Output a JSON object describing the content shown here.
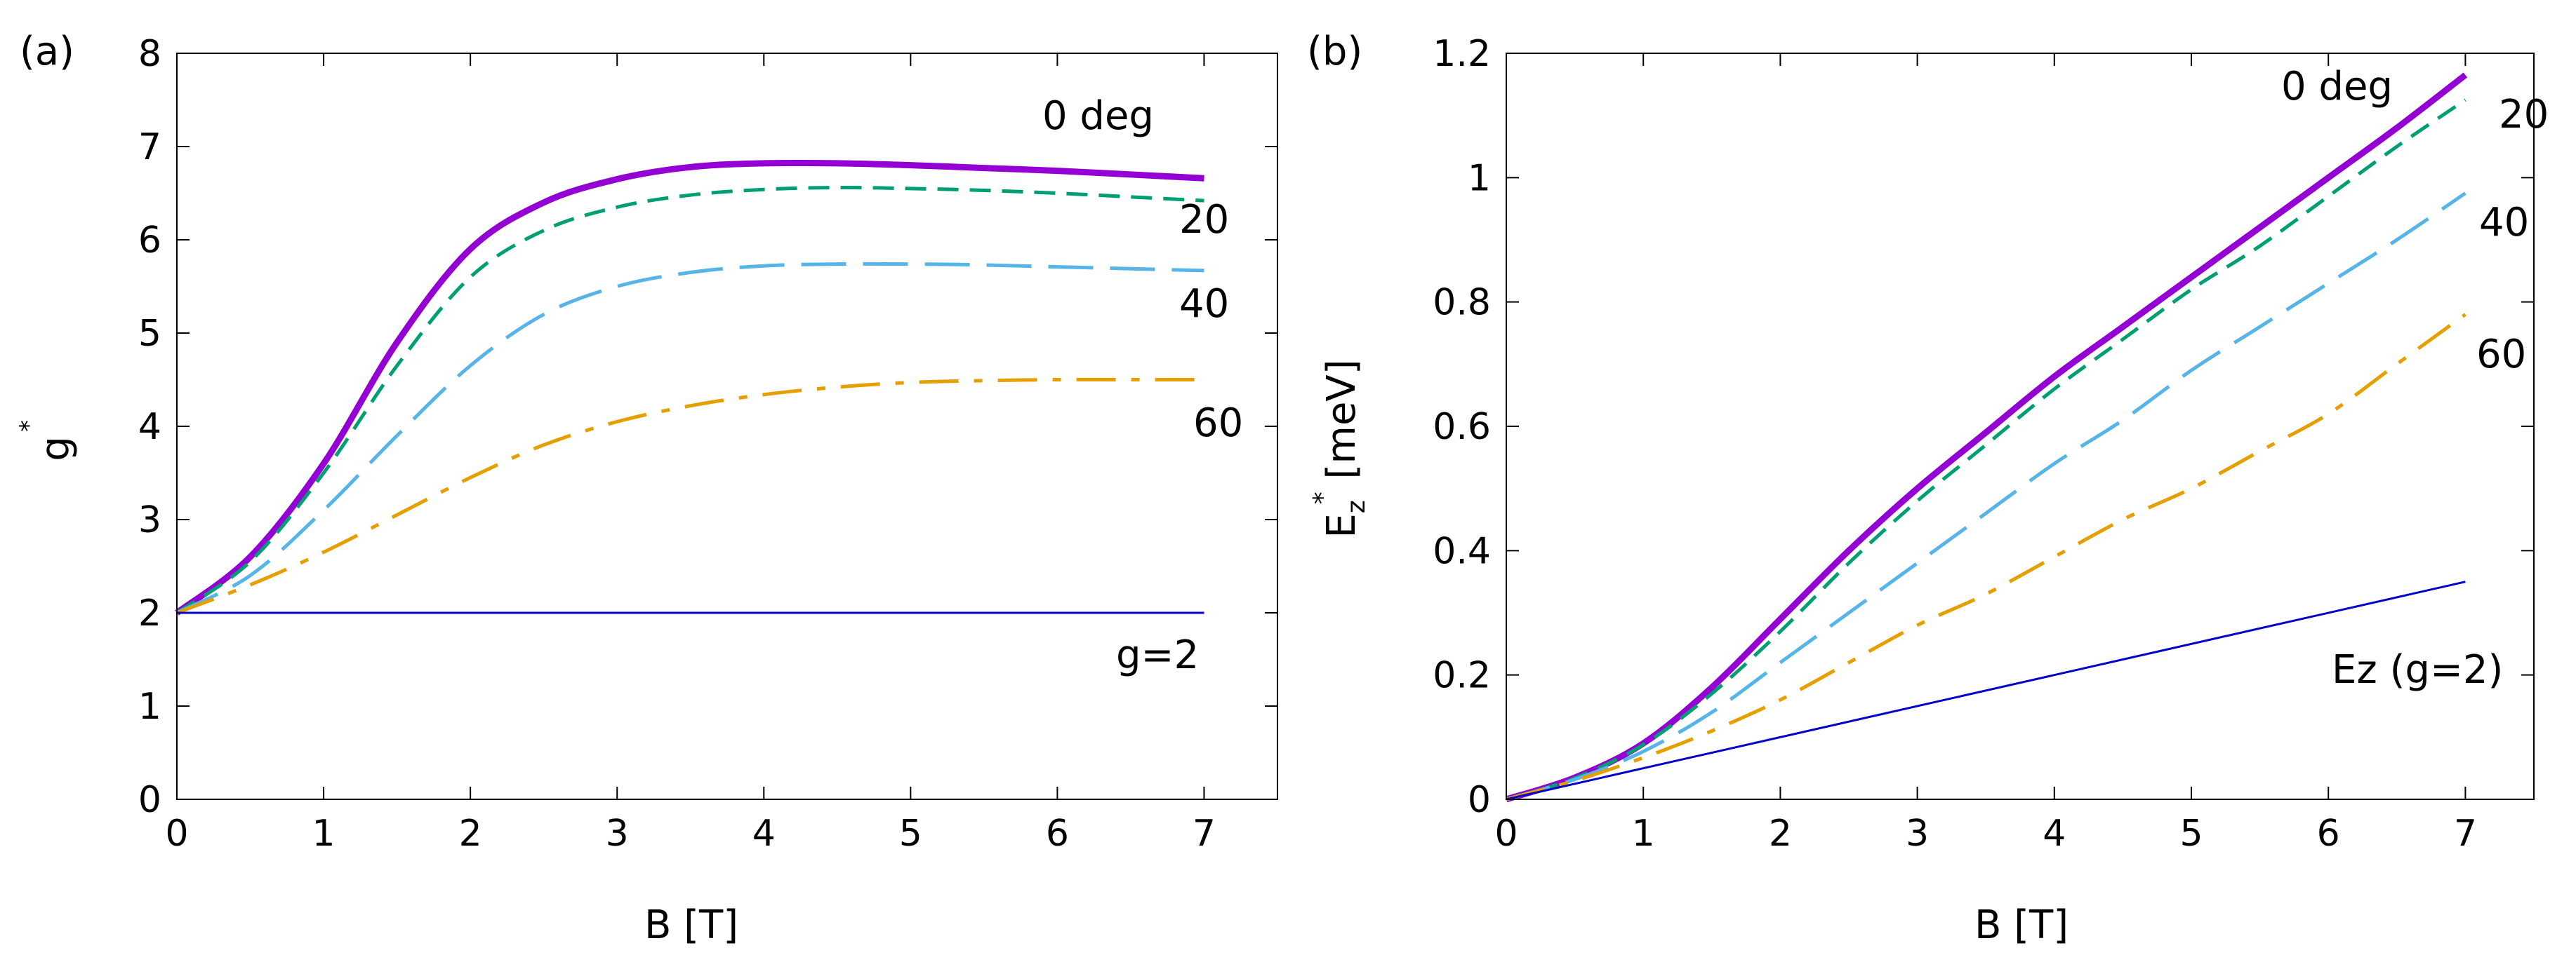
{
  "chart_data": [
    {
      "type": "line",
      "panel_label": "(a)",
      "xlabel": "B [T]",
      "ylabel": "g",
      "ylabel_superscript": "*",
      "xlim": [
        0,
        7.5
      ],
      "ylim": [
        0,
        8
      ],
      "xticks": [
        0,
        1,
        2,
        3,
        4,
        5,
        6,
        7
      ],
      "yticks": [
        0,
        1,
        2,
        3,
        4,
        5,
        6,
        7,
        8
      ],
      "grid": false,
      "series": [
        {
          "name": "0 deg",
          "label": "0 deg",
          "style": "solid-thick",
          "color": "#9400d3",
          "x": [
            0,
            0.5,
            1,
            1.5,
            2,
            2.5,
            3,
            3.5,
            4,
            4.5,
            5,
            5.5,
            6,
            6.5,
            7
          ],
          "y": [
            2.0,
            2.6,
            3.6,
            4.9,
            5.9,
            6.4,
            6.65,
            6.78,
            6.82,
            6.82,
            6.8,
            6.77,
            6.74,
            6.7,
            6.66
          ]
        },
        {
          "name": "20",
          "label": "20",
          "style": "dash",
          "color": "#009e73",
          "x": [
            0,
            0.5,
            1,
            1.5,
            2,
            2.5,
            3,
            3.5,
            4,
            4.5,
            5,
            5.5,
            6,
            6.5,
            7
          ],
          "y": [
            2.0,
            2.55,
            3.5,
            4.65,
            5.6,
            6.1,
            6.35,
            6.48,
            6.54,
            6.56,
            6.55,
            6.53,
            6.5,
            6.46,
            6.42
          ]
        },
        {
          "name": "40",
          "label": "40",
          "style": "long-dash",
          "color": "#56b4e9",
          "x": [
            0,
            0.5,
            1,
            1.5,
            2,
            2.5,
            3,
            3.5,
            4,
            4.5,
            5,
            5.5,
            6,
            6.5,
            7
          ],
          "y": [
            2.0,
            2.4,
            3.1,
            3.9,
            4.65,
            5.2,
            5.5,
            5.65,
            5.72,
            5.74,
            5.74,
            5.73,
            5.71,
            5.69,
            5.67
          ]
        },
        {
          "name": "60",
          "label": "60",
          "style": "dash-dot",
          "color": "#e69f00",
          "x": [
            0,
            0.5,
            1,
            1.5,
            2,
            2.5,
            3,
            3.5,
            4,
            4.5,
            5,
            5.5,
            6,
            6.5,
            7
          ],
          "y": [
            2.0,
            2.3,
            2.65,
            3.05,
            3.45,
            3.8,
            4.05,
            4.22,
            4.34,
            4.42,
            4.47,
            4.49,
            4.5,
            4.5,
            4.5
          ]
        },
        {
          "name": "g=2",
          "label": "g=2",
          "style": "solid-thin",
          "color": "#0000cd",
          "x": [
            0,
            7
          ],
          "y": [
            2,
            2
          ]
        }
      ]
    },
    {
      "type": "line",
      "panel_label": "(b)",
      "xlabel": "B [T]",
      "ylabel": "E",
      "ylabel_subscript": "z",
      "ylabel_superscript": "*",
      "ylabel_unit": " [meV]",
      "xlim": [
        0,
        7.5
      ],
      "ylim": [
        0,
        1.2
      ],
      "xticks": [
        0,
        1,
        2,
        3,
        4,
        5,
        6,
        7
      ],
      "yticks": [
        0,
        0.2,
        0.4,
        0.6,
        0.8,
        1,
        1.2
      ],
      "ytick_labels": [
        "0",
        "0.2",
        "0.4",
        "0.6",
        "0.8",
        "1",
        "1.2"
      ],
      "grid": false,
      "series": [
        {
          "name": "0 deg",
          "label": "0 deg",
          "style": "solid-thick",
          "color": "#9400d3",
          "x": [
            0,
            0.5,
            1,
            1.5,
            2,
            2.5,
            3,
            3.5,
            4,
            4.5,
            5,
            5.5,
            6,
            6.5,
            7
          ],
          "y": [
            0,
            0.035,
            0.09,
            0.18,
            0.29,
            0.4,
            0.5,
            0.59,
            0.68,
            0.76,
            0.84,
            0.92,
            1.0,
            1.08,
            1.165
          ]
        },
        {
          "name": "20",
          "label": "20",
          "style": "dash",
          "color": "#009e73",
          "x": [
            0,
            0.5,
            1,
            1.5,
            2,
            2.5,
            3,
            3.5,
            4,
            4.5,
            5,
            5.5,
            6,
            6.5,
            7
          ],
          "y": [
            0,
            0.034,
            0.088,
            0.17,
            0.27,
            0.38,
            0.48,
            0.57,
            0.66,
            0.74,
            0.82,
            0.89,
            0.97,
            1.05,
            1.125
          ]
        },
        {
          "name": "40",
          "label": "40",
          "style": "long-dash",
          "color": "#56b4e9",
          "x": [
            0,
            0.5,
            1,
            1.5,
            2,
            2.5,
            3,
            3.5,
            4,
            4.5,
            5,
            5.5,
            6,
            6.5,
            7
          ],
          "y": [
            0,
            0.032,
            0.077,
            0.14,
            0.22,
            0.3,
            0.38,
            0.46,
            0.54,
            0.61,
            0.69,
            0.76,
            0.83,
            0.9,
            0.975
          ]
        },
        {
          "name": "60",
          "label": "60",
          "style": "dash-dot",
          "color": "#e69f00",
          "x": [
            0,
            0.5,
            1,
            1.5,
            2,
            2.5,
            3,
            3.5,
            4,
            4.5,
            5,
            5.5,
            6,
            6.5,
            7
          ],
          "y": [
            0,
            0.03,
            0.067,
            0.11,
            0.16,
            0.22,
            0.28,
            0.33,
            0.39,
            0.45,
            0.5,
            0.56,
            0.62,
            0.7,
            0.78
          ]
        },
        {
          "name": "Ez (g=2)",
          "label": "Ez (g=2)",
          "style": "solid-thin",
          "color": "#0000cd",
          "x": [
            0,
            7
          ],
          "y": [
            0,
            0.35
          ]
        }
      ]
    }
  ]
}
